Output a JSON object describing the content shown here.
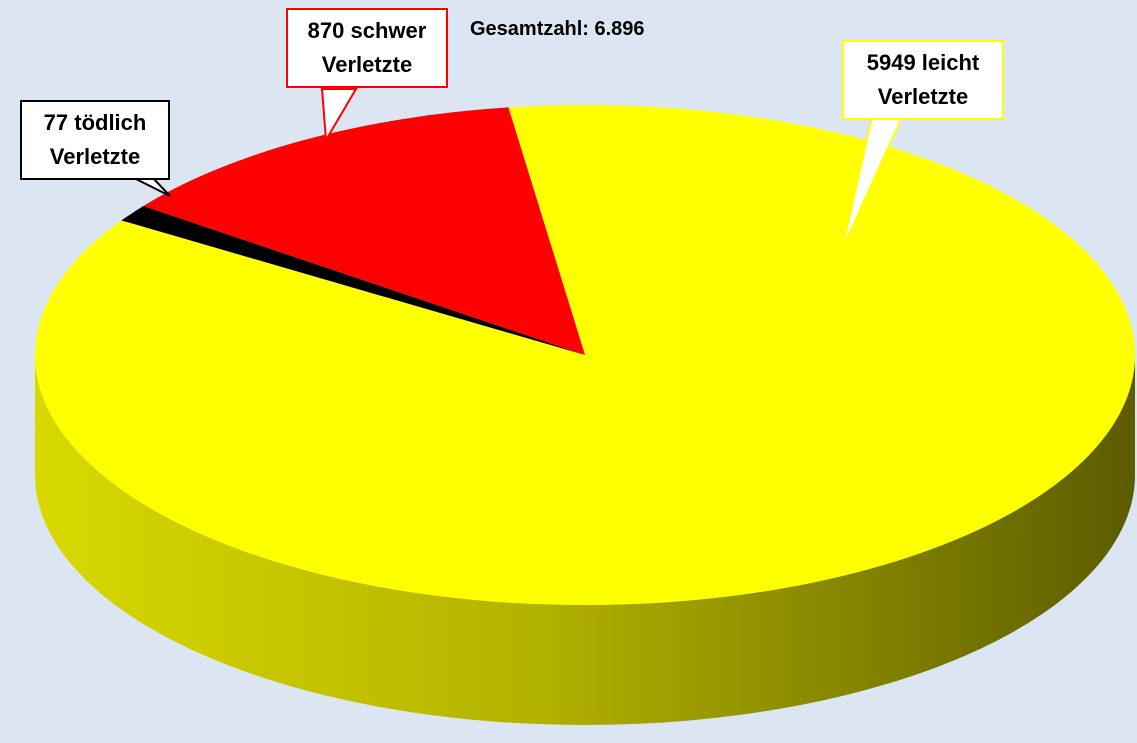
{
  "chart_data": {
    "type": "pie",
    "title": "Gesamtzahl: 6.896",
    "values": [
      5949,
      77,
      870
    ],
    "value_labels": [
      "5949 leicht Verletzte",
      "77 tödlich Verletzte",
      "870 schwer Verletzte"
    ],
    "colors": [
      "#ffff00",
      "#000000",
      "#ff0000"
    ]
  }
}
